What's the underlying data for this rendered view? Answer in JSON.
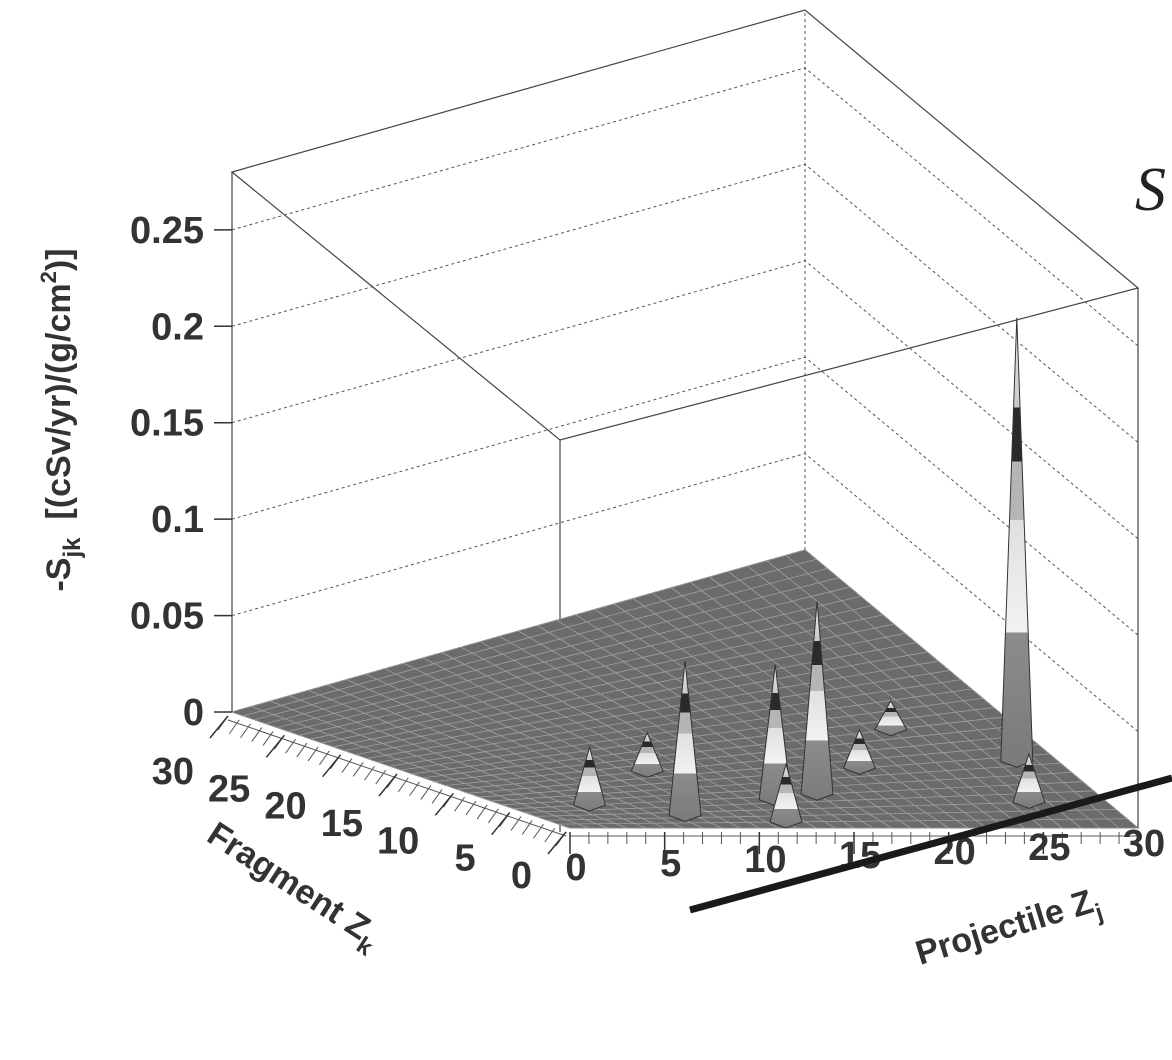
{
  "chart_data": {
    "type": "surface3d",
    "annotation": "S",
    "x_label": "Projectile Z",
    "x_label_sub": "j",
    "y_label": "Fragment Z",
    "y_label_sub": "k",
    "z_label": "-S",
    "z_label_sub": "jk",
    "z_label_unit": "[(cSv/yr)/(g/cm",
    "z_label_sup": "2",
    "z_label_end": ")]",
    "x": [
      7.5,
      13.5,
      16,
      28,
      4,
      10,
      20,
      24,
      26,
      12
    ],
    "y": [
      2.4,
      4.5,
      5,
      7.5,
      5,
      10,
      8,
      12,
      3,
      1
    ],
    "values": [
      0.08,
      0.07,
      0.1,
      0.23,
      0.03,
      0.02,
      0.02,
      0.015,
      0.025,
      0.03
    ],
    "xlim": [
      0,
      30
    ],
    "ylim": [
      0,
      30
    ],
    "zlim": [
      0,
      0.28
    ],
    "xticks": [
      0,
      5,
      10,
      15,
      20,
      25,
      30
    ],
    "yticks": [
      0,
      5,
      10,
      15,
      20,
      25,
      30
    ],
    "zticks": [
      0,
      0.05,
      0.1,
      0.15,
      0.2,
      0.25
    ],
    "grid": true,
    "color": "#6b6b6b"
  }
}
